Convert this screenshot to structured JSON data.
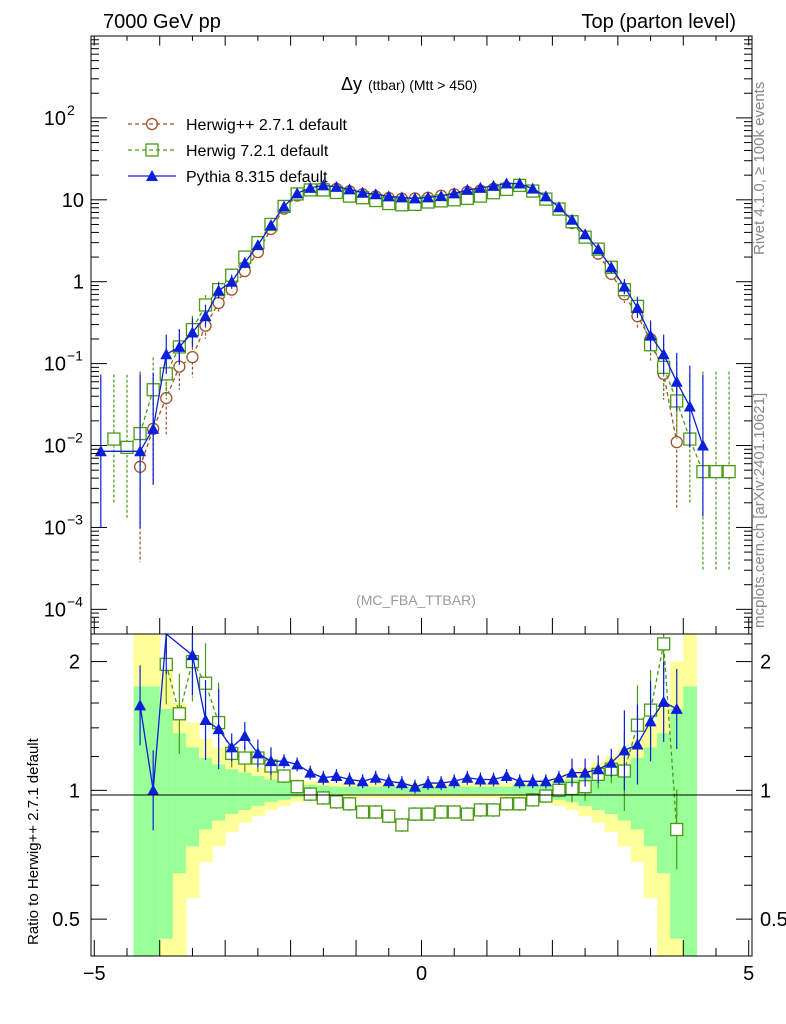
{
  "chart_data": {
    "type": "line",
    "header_left": "7000 GeV pp",
    "header_right": "Top (parton level)",
    "title_main": "Δy",
    "title_sub": "(ttbar) (Mtt > 450)",
    "watermark": "(MC_FBA_TTBAR)",
    "side_label_top": "Rivet 4.1.0, ≥ 100k events",
    "side_label_bottom": "mcplots.cern.ch [arXiv:2401.10621]",
    "ratio_ylabel": "Ratio to Herwig++ 2.7.1 default",
    "xlim": [
      -5.05,
      5.05
    ],
    "ylim_log": [
      5e-05,
      1000
    ],
    "ratio_ylim": [
      0.41,
      2.32
    ],
    "x_ticks": [
      "-5",
      "0",
      "5"
    ],
    "y_ticks_main": [
      {
        "base": "10",
        "exp": "2",
        "value": 100
      },
      {
        "base": "10",
        "exp": "",
        "value": 10
      },
      {
        "base": "1",
        "exp": "",
        "value": 1
      },
      {
        "base": "10",
        "exp": "−1",
        "value": 0.1
      },
      {
        "base": "10",
        "exp": "−2",
        "value": 0.01
      },
      {
        "base": "10",
        "exp": "−3",
        "value": 0.001
      },
      {
        "base": "10",
        "exp": "−4",
        "value": 0.0001
      }
    ],
    "y_ticks_ratio": [
      {
        "label": "2",
        "value": 2
      },
      {
        "label": "1",
        "value": 1
      },
      {
        "label": "0.5",
        "value": 0.5
      }
    ],
    "series": [
      {
        "name": "Herwig++ 2.7.1 default",
        "color": "#a0522d",
        "marker": "circle",
        "x": [
          -4.3,
          -4.1,
          -3.9,
          -3.7,
          -3.5,
          -3.3,
          -3.1,
          -2.9,
          -2.7,
          -2.5,
          -2.3,
          -2.1,
          -1.9,
          -1.7,
          -1.5,
          -1.3,
          -1.1,
          -0.9,
          -0.7,
          -0.5,
          -0.3,
          -0.1,
          0.1,
          0.3,
          0.5,
          0.7,
          0.9,
          1.1,
          1.3,
          1.5,
          1.7,
          1.9,
          2.1,
          2.3,
          2.5,
          2.7,
          2.9,
          3.1,
          3.3,
          3.5,
          3.7,
          3.9
        ],
        "y": [
          0.0055,
          0.016,
          0.038,
          0.092,
          0.12,
          0.29,
          0.55,
          0.8,
          1.35,
          2.3,
          4.4,
          7.8,
          11.3,
          13.3,
          14,
          13.6,
          12.7,
          11.7,
          11,
          10.5,
          10.3,
          10.4,
          10.6,
          11.2,
          11.7,
          12.5,
          13,
          13.6,
          14.2,
          15,
          12.8,
          10.2,
          7.8,
          5.2,
          3.5,
          2.2,
          1.25,
          0.7,
          0.38,
          0.2,
          0.075,
          0.011
        ]
      },
      {
        "name": "Herwig 7.2.1 default",
        "color": "#4a9a16",
        "marker": "square",
        "x": [
          -4.7,
          -4.5,
          -4.3,
          -4.1,
          -3.9,
          -3.7,
          -3.5,
          -3.3,
          -3.1,
          -2.9,
          -2.7,
          -2.5,
          -2.3,
          -2.1,
          -1.9,
          -1.7,
          -1.5,
          -1.3,
          -1.1,
          -0.9,
          -0.7,
          -0.5,
          -0.3,
          -0.1,
          0.1,
          0.3,
          0.5,
          0.7,
          0.9,
          1.1,
          1.3,
          1.5,
          1.7,
          1.9,
          2.1,
          2.3,
          2.5,
          2.7,
          2.9,
          3.1,
          3.3,
          3.5,
          3.7,
          3.9,
          4.1,
          4.3,
          4.5,
          4.7
        ],
        "y": [
          0.012,
          0.0095,
          0.014,
          0.048,
          0.075,
          0.16,
          0.26,
          0.52,
          0.8,
          1.2,
          2.0,
          3.0,
          5.0,
          8.3,
          11.8,
          13.2,
          13.2,
          12.3,
          11.1,
          10.6,
          9.8,
          9.0,
          8.7,
          8.8,
          9.4,
          9.7,
          10,
          10.4,
          11.1,
          12.2,
          13.4,
          15,
          12.8,
          10.2,
          7.7,
          5.4,
          3.5,
          2.5,
          1.5,
          0.8,
          0.5,
          0.17,
          0.09,
          0.035,
          0.012,
          0.0048,
          0.0048,
          0.0048
        ]
      },
      {
        "name": "Pythia 8.315 default",
        "color": "#0a1fd8",
        "marker": "triangle",
        "x": [
          -4.9,
          -4.3,
          -4.1,
          -3.9,
          -3.7,
          -3.5,
          -3.3,
          -3.1,
          -2.9,
          -2.7,
          -2.5,
          -2.3,
          -2.1,
          -1.9,
          -1.7,
          -1.5,
          -1.3,
          -1.1,
          -0.9,
          -0.7,
          -0.5,
          -0.3,
          -0.1,
          0.1,
          0.3,
          0.5,
          0.7,
          0.9,
          1.1,
          1.3,
          1.5,
          1.7,
          1.9,
          2.1,
          2.3,
          2.5,
          2.7,
          2.9,
          3.1,
          3.3,
          3.5,
          3.7,
          3.9,
          4.1,
          4.3
        ],
        "y": [
          0.0085,
          0.0085,
          0.016,
          0.13,
          0.16,
          0.24,
          0.38,
          0.78,
          1.0,
          1.7,
          2.8,
          4.9,
          8.3,
          12,
          14,
          15,
          14.4,
          13.4,
          12.2,
          11.7,
          11,
          10.7,
          10.4,
          10.7,
          11.1,
          12,
          13.2,
          14,
          14.8,
          15.8,
          15.8,
          13.7,
          11,
          8.1,
          5.7,
          3.8,
          2.5,
          1.5,
          0.87,
          0.48,
          0.22,
          0.13,
          0.06,
          0.03,
          0.01
        ]
      }
    ],
    "ratio_series": [
      {
        "name": "Herwig 7.2.1 default",
        "x": [
          -3.9,
          -3.7,
          -3.5,
          -3.3,
          -3.1,
          -2.9,
          -2.7,
          -2.5,
          -2.3,
          -2.1,
          -1.9,
          -1.7,
          -1.5,
          -1.3,
          -1.1,
          -0.9,
          -0.7,
          -0.5,
          -0.3,
          -0.1,
          0.1,
          0.3,
          0.5,
          0.7,
          0.9,
          1.1,
          1.3,
          1.5,
          1.7,
          1.9,
          2.1,
          2.3,
          2.5,
          2.7,
          2.9,
          3.1,
          3.3,
          3.5,
          3.7,
          3.9
        ],
        "y": [
          1.97,
          1.51,
          2.0,
          1.78,
          1.44,
          1.22,
          1.19,
          1.19,
          1.14,
          1.08,
          1.02,
          0.98,
          0.96,
          0.94,
          0.93,
          0.89,
          0.89,
          0.87,
          0.83,
          0.88,
          0.88,
          0.89,
          0.89,
          0.88,
          0.9,
          0.9,
          0.93,
          0.93,
          0.95,
          0.97,
          1.0,
          1.01,
          1.02,
          1.09,
          1.12,
          1.11,
          1.42,
          1.54,
          2.2,
          0.81
        ]
      },
      {
        "name": "Pythia 8.315 default",
        "x": [
          -4.3,
          -4.1,
          -3.9,
          -3.5,
          -3.3,
          -3.1,
          -2.9,
          -2.7,
          -2.5,
          -2.3,
          -2.1,
          -1.9,
          -1.7,
          -1.5,
          -1.3,
          -1.1,
          -0.9,
          -0.7,
          -0.5,
          -0.3,
          -0.1,
          0.1,
          0.3,
          0.5,
          0.7,
          0.9,
          1.1,
          1.3,
          1.5,
          1.7,
          1.9,
          2.1,
          2.3,
          2.5,
          2.7,
          2.9,
          3.1,
          3.3,
          3.5,
          3.7,
          3.9
        ],
        "y": [
          1.58,
          1.0,
          2.5,
          2.07,
          1.46,
          1.39,
          1.26,
          1.34,
          1.22,
          1.17,
          1.17,
          1.15,
          1.1,
          1.07,
          1.08,
          1.06,
          1.05,
          1.07,
          1.05,
          1.04,
          1.02,
          1.04,
          1.04,
          1.05,
          1.07,
          1.06,
          1.06,
          1.08,
          1.05,
          1.05,
          1.05,
          1.07,
          1.1,
          1.1,
          1.12,
          1.16,
          1.24,
          1.28,
          1.45,
          1.61,
          1.55
        ]
      }
    ],
    "ratio_bands": {
      "x_edges": [
        -4.4,
        -4.2,
        -4.0,
        -3.8,
        -3.6,
        -3.4,
        -3.2,
        -3.0,
        -2.8,
        -2.6,
        -2.4,
        -2.2,
        -2.0,
        -1.8,
        -1.6,
        -1.4,
        -1.2,
        -1.0,
        -0.8,
        -0.6,
        -0.4,
        -0.2,
        0.0,
        0.2,
        0.4,
        0.6,
        0.8,
        1.0,
        1.2,
        1.4,
        1.6,
        1.8,
        2.0,
        2.2,
        2.4,
        2.6,
        2.8,
        3.0,
        3.2,
        3.4,
        3.6,
        3.8,
        4.0,
        4.2
      ],
      "yellow_half_width": [
        1.5,
        1.5,
        1.0,
        0.6,
        0.44,
        0.32,
        0.26,
        0.2,
        0.16,
        0.13,
        0.1,
        0.08,
        0.06,
        0.05,
        0.05,
        0.04,
        0.04,
        0.04,
        0.04,
        0.04,
        0.04,
        0.04,
        0.04,
        0.04,
        0.04,
        0.04,
        0.04,
        0.04,
        0.04,
        0.05,
        0.05,
        0.06,
        0.08,
        0.1,
        0.13,
        0.16,
        0.2,
        0.26,
        0.32,
        0.44,
        0.6,
        1.0,
        1.5
      ],
      "green_half_width": [
        0.75,
        0.75,
        0.55,
        0.36,
        0.26,
        0.19,
        0.15,
        0.12,
        0.1,
        0.08,
        0.06,
        0.05,
        0.035,
        0.03,
        0.025,
        0.02,
        0.02,
        0.02,
        0.02,
        0.02,
        0.02,
        0.02,
        0.02,
        0.02,
        0.02,
        0.02,
        0.02,
        0.02,
        0.02,
        0.025,
        0.03,
        0.035,
        0.05,
        0.06,
        0.08,
        0.1,
        0.12,
        0.15,
        0.19,
        0.26,
        0.36,
        0.55,
        0.75
      ]
    }
  }
}
